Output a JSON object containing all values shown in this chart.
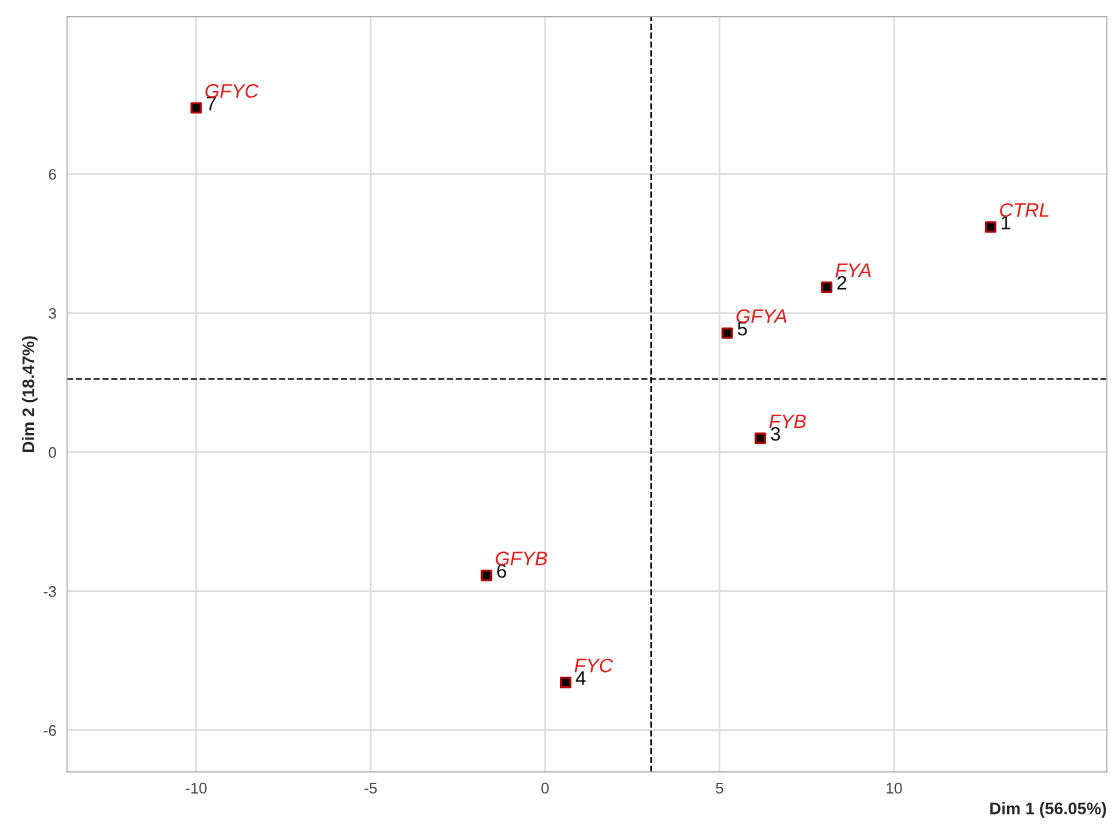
{
  "chart_data": {
    "type": "scatter",
    "xlabel": "Dim 1 (56.05%)",
    "ylabel": "Dim 2 (18.47%)",
    "xlim": [
      -13.7,
      16.1
    ],
    "ylim": [
      -6.9,
      9.4
    ],
    "xticks": [
      -10,
      -5,
      0,
      5,
      10
    ],
    "yticks": [
      -6,
      -3,
      0,
      3,
      6
    ],
    "grid": true,
    "marker": "square",
    "series": [
      {
        "color": "#b00000",
        "x": [
          12.77,
          8.07,
          6.17,
          0.59,
          5.22,
          -1.68,
          -10.0
        ],
        "values": [
          4.86,
          3.56,
          0.3,
          -4.97,
          2.57,
          -2.66,
          7.43
        ]
      }
    ],
    "annotations": [
      {
        "text": "1",
        "x": 12.77,
        "y": 4.86
      },
      {
        "text": "2",
        "x": 8.07,
        "y": 3.56
      },
      {
        "text": "3",
        "x": 6.17,
        "y": 0.3
      },
      {
        "text": "4",
        "x": 0.59,
        "y": -4.97
      },
      {
        "text": "5",
        "x": 5.22,
        "y": 2.57
      },
      {
        "text": "6",
        "x": -1.68,
        "y": -2.66
      },
      {
        "text": "7",
        "x": -10.0,
        "y": 7.43
      },
      {
        "text": "CTRL",
        "x": 12.77,
        "y": 4.86
      },
      {
        "text": "FYA",
        "x": 8.07,
        "y": 3.56
      },
      {
        "text": "FYB",
        "x": 6.17,
        "y": 0.3
      },
      {
        "text": "FYC",
        "x": 0.59,
        "y": -4.97
      },
      {
        "text": "GFYA",
        "x": 5.22,
        "y": 2.57
      },
      {
        "text": "GFYB",
        "x": -1.68,
        "y": -2.66
      },
      {
        "text": "GFYC",
        "x": -10.0,
        "y": 7.43
      }
    ],
    "ref_lines": [
      {
        "axis": "x",
        "value": 3.04,
        "line_style": "dashed",
        "color": "#000000"
      },
      {
        "axis": "y",
        "value": 1.58,
        "line_style": "dashed",
        "color": "#000000"
      }
    ]
  }
}
